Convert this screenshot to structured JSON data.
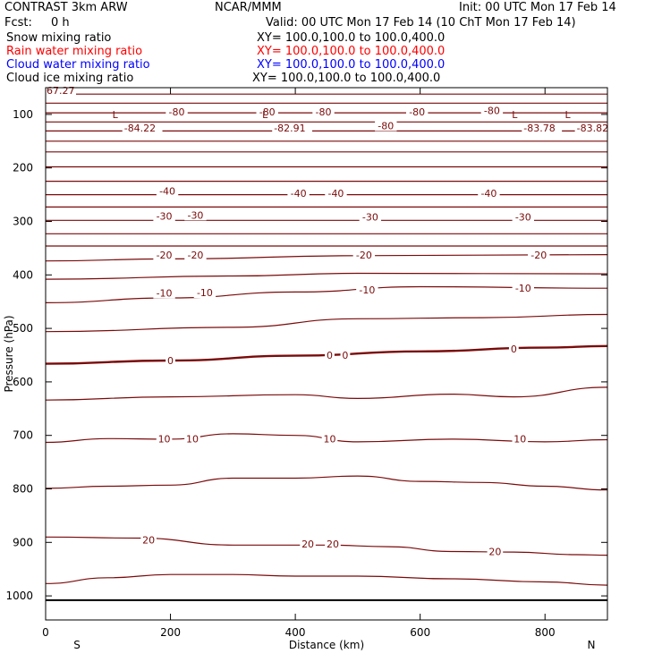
{
  "header": {
    "title": "CONTRAST  3km ARW",
    "center": "NCAR/MMM",
    "init": "Init: 00 UTC Mon 17 Feb 14",
    "fcst_label": "Fcst:",
    "fcst_value": "0 h",
    "valid": "Valid: 00 UTC Mon 17 Feb 14 (10 ChT Mon 17 Feb 14)"
  },
  "fields": [
    {
      "name": "Snow mixing ratio",
      "xy": "XY= 100.0,100.0 to 100.0,400.0",
      "color": "#000000"
    },
    {
      "name": "Rain water mixing ratio",
      "xy": "XY= 100.0,100.0 to 100.0,400.0",
      "color": "#ff0000"
    },
    {
      "name": "Cloud water mixing ratio",
      "xy": "XY= 100.0,100.0 to 100.0,400.0",
      "color": "#0000ff"
    },
    {
      "name": "Cloud ice mixing ratio",
      "xy": "XY= 100.0,100.0 to 100.0,400.0",
      "color": "#000000"
    }
  ],
  "chart_data": {
    "type": "line",
    "subtype": "vertical cross-section contour plot",
    "contour_color": "#7a0a0a",
    "xlabel": "Distance (km)",
    "ylabel": "Pressure (hPa)",
    "xlim": [
      0,
      900
    ],
    "ylim": [
      50,
      1045
    ],
    "y_scale": "linear, inverted (pressure increases downward)",
    "xticks": [
      0,
      200,
      400,
      600,
      800
    ],
    "yticks": [
      100,
      200,
      300,
      400,
      500,
      600,
      700,
      800,
      900,
      1000
    ],
    "end_labels": {
      "left": "S",
      "right": "N"
    },
    "corner_label": "67.27",
    "contours": [
      {
        "x": [
          0,
          900
        ],
        "y": [
          62,
          62
        ]
      },
      {
        "x": [
          0,
          900
        ],
        "y": [
          79,
          79
        ]
      },
      {
        "x": [
          0,
          900
        ],
        "y": [
          97,
          97
        ],
        "label": "-80"
      },
      {
        "x": [
          0,
          900
        ],
        "y": [
          114,
          114
        ]
      },
      {
        "x": [
          0,
          900
        ],
        "y": [
          131,
          131
        ]
      },
      {
        "x": [
          0,
          900
        ],
        "y": [
          150,
          150
        ]
      },
      {
        "x": [
          0,
          900
        ],
        "y": [
          170,
          170
        ]
      },
      {
        "x": [
          0,
          900
        ],
        "y": [
          198,
          198
        ]
      },
      {
        "x": [
          0,
          900
        ],
        "y": [
          225,
          225
        ]
      },
      {
        "x": [
          0,
          900
        ],
        "y": [
          250,
          250
        ],
        "label": "-40"
      },
      {
        "x": [
          0,
          900
        ],
        "y": [
          273,
          273
        ]
      },
      {
        "x": [
          0,
          900
        ],
        "y": [
          298,
          298
        ],
        "label": "-30"
      },
      {
        "x": [
          0,
          900
        ],
        "y": [
          323,
          323
        ]
      },
      {
        "x": [
          0,
          900
        ],
        "y": [
          346,
          346
        ]
      },
      {
        "x": [
          0,
          200,
          500,
          900
        ],
        "y": [
          374,
          370,
          364,
          362
        ],
        "label": "-20"
      },
      {
        "x": [
          0,
          300,
          500,
          900
        ],
        "y": [
          408,
          402,
          397,
          398
        ]
      },
      {
        "x": [
          0,
          200,
          400,
          600,
          900
        ],
        "y": [
          452,
          443,
          432,
          422,
          425
        ],
        "label": "-10"
      },
      {
        "x": [
          0,
          300,
          500,
          700,
          900
        ],
        "y": [
          506,
          498,
          482,
          480,
          474
        ]
      },
      {
        "x": [
          0,
          200,
          400,
          600,
          800,
          900
        ],
        "y": [
          566,
          560,
          551,
          543,
          536,
          533
        ],
        "label": "0",
        "bold": true
      },
      {
        "x": [
          0,
          200,
          400,
          500,
          650,
          750,
          900
        ],
        "y": [
          634,
          628,
          624,
          631,
          623,
          628,
          610
        ]
      },
      {
        "x": [
          0,
          100,
          200,
          300,
          400,
          500,
          650,
          800,
          900
        ],
        "y": [
          713,
          706,
          707,
          697,
          700,
          712,
          707,
          712,
          708
        ],
        "label": "10"
      },
      {
        "x": [
          0,
          100,
          200,
          300,
          400,
          500,
          600,
          700,
          800,
          900
        ],
        "y": [
          799,
          795,
          793,
          780,
          780,
          776,
          786,
          788,
          795,
          802
        ]
      },
      {
        "x": [
          0,
          150,
          300,
          450,
          550,
          650,
          750,
          850,
          900
        ],
        "y": [
          890,
          892,
          905,
          905,
          908,
          917,
          918,
          923,
          924
        ],
        "label": "20"
      },
      {
        "x": [
          0,
          100,
          200,
          300,
          400,
          500,
          650,
          800,
          900
        ],
        "y": [
          977,
          966,
          960,
          960,
          963,
          963,
          968,
          974,
          980
        ]
      },
      {
        "x": [
          0,
          900
        ],
        "y": [
          1008,
          1008
        ],
        "black": true
      }
    ],
    "contour_labels": [
      {
        "x": 210,
        "y": 95,
        "text": "-80"
      },
      {
        "x": 355,
        "y": 95,
        "text": "-80"
      },
      {
        "x": 445,
        "y": 95,
        "text": "-80"
      },
      {
        "x": 595,
        "y": 95,
        "text": "-80"
      },
      {
        "x": 715,
        "y": 93,
        "text": "-80"
      },
      {
        "x": 545,
        "y": 121,
        "text": "-80"
      },
      {
        "x": 195,
        "y": 243,
        "text": "-40"
      },
      {
        "x": 405,
        "y": 247,
        "text": "-40"
      },
      {
        "x": 465,
        "y": 247,
        "text": "-40"
      },
      {
        "x": 710,
        "y": 247,
        "text": "-40"
      },
      {
        "x": 190,
        "y": 290,
        "text": "-30"
      },
      {
        "x": 240,
        "y": 288,
        "text": "-30"
      },
      {
        "x": 520,
        "y": 292,
        "text": "-30"
      },
      {
        "x": 765,
        "y": 292,
        "text": "-30"
      },
      {
        "x": 190,
        "y": 363,
        "text": "-20"
      },
      {
        "x": 240,
        "y": 363,
        "text": "-20"
      },
      {
        "x": 510,
        "y": 363,
        "text": "-20"
      },
      {
        "x": 790,
        "y": 363,
        "text": "-20"
      },
      {
        "x": 190,
        "y": 434,
        "text": "-10"
      },
      {
        "x": 255,
        "y": 433,
        "text": "-10"
      },
      {
        "x": 515,
        "y": 428,
        "text": "-10"
      },
      {
        "x": 765,
        "y": 425,
        "text": "-10"
      },
      {
        "x": 200,
        "y": 560,
        "text": "0"
      },
      {
        "x": 455,
        "y": 550,
        "text": "0"
      },
      {
        "x": 480,
        "y": 550,
        "text": "0"
      },
      {
        "x": 750,
        "y": 538,
        "text": "0"
      },
      {
        "x": 190,
        "y": 706,
        "text": "10"
      },
      {
        "x": 235,
        "y": 706,
        "text": "10"
      },
      {
        "x": 455,
        "y": 706,
        "text": "10"
      },
      {
        "x": 760,
        "y": 706,
        "text": "10"
      },
      {
        "x": 165,
        "y": 895,
        "text": "20"
      },
      {
        "x": 420,
        "y": 903,
        "text": "20"
      },
      {
        "x": 460,
        "y": 903,
        "text": "20"
      },
      {
        "x": 720,
        "y": 917,
        "text": "20"
      }
    ],
    "extrema": [
      {
        "x": 120,
        "y": 107,
        "mark": "L",
        "value": "-84.22"
      },
      {
        "x": 360,
        "y": 107,
        "mark": "L",
        "value": "-82.91"
      },
      {
        "x": 760,
        "y": 107,
        "mark": "L",
        "value": "-83.78"
      },
      {
        "x": 845,
        "y": 107,
        "mark": "L",
        "value": "-83.82"
      }
    ]
  }
}
